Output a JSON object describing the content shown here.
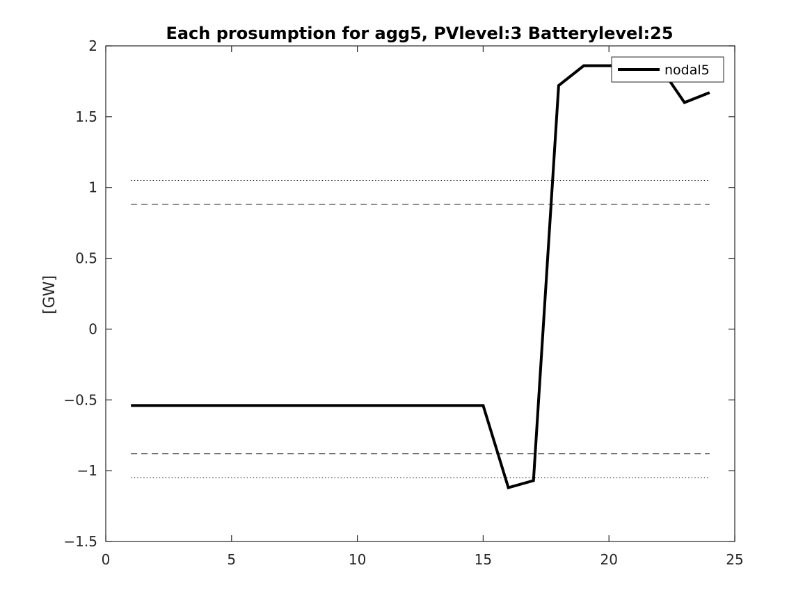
{
  "chart_data": {
    "type": "line",
    "title": "Each prosumption for agg5, PVlevel:3 Batterylevel:25",
    "xlabel": "",
    "ylabel": "[GW]",
    "xlim": [
      0,
      25
    ],
    "ylim": [
      -1.5,
      2
    ],
    "xticks": [
      0,
      5,
      10,
      15,
      20,
      25
    ],
    "yticks": [
      -1.5,
      -1,
      -0.5,
      0,
      0.5,
      1,
      1.5,
      2
    ],
    "xtick_labels": [
      "0",
      "5",
      "10",
      "15",
      "20",
      "25"
    ],
    "ytick_labels": [
      "−1.5",
      "−1",
      "−0.5",
      "0",
      "0.5",
      "1",
      "1.5",
      "2"
    ],
    "grid": false,
    "legend_position": "top-right",
    "series": [
      {
        "name": "nodal5",
        "color": "#000000",
        "line_style": "solid",
        "x": [
          1,
          2,
          3,
          4,
          5,
          6,
          7,
          8,
          9,
          10,
          11,
          12,
          13,
          14,
          15,
          16,
          17,
          18,
          19,
          20,
          21,
          22,
          23,
          24
        ],
        "values": [
          -0.54,
          -0.54,
          -0.54,
          -0.54,
          -0.54,
          -0.54,
          -0.54,
          -0.54,
          -0.54,
          -0.54,
          -0.54,
          -0.54,
          -0.54,
          -0.54,
          -0.54,
          -1.12,
          -1.07,
          1.72,
          1.86,
          1.86,
          1.86,
          1.86,
          1.6,
          1.67
        ]
      }
    ],
    "reference_lines": [
      {
        "y": 1.05,
        "x_range": [
          1,
          24
        ],
        "style": "dotted",
        "color": "#000000"
      },
      {
        "y": 0.88,
        "x_range": [
          1,
          24
        ],
        "style": "dashed",
        "color": "#333333"
      },
      {
        "y": -0.88,
        "x_range": [
          1,
          24
        ],
        "style": "dashed",
        "color": "#333333"
      },
      {
        "y": -1.05,
        "x_range": [
          1,
          24
        ],
        "style": "dotted",
        "color": "#000000"
      }
    ]
  }
}
